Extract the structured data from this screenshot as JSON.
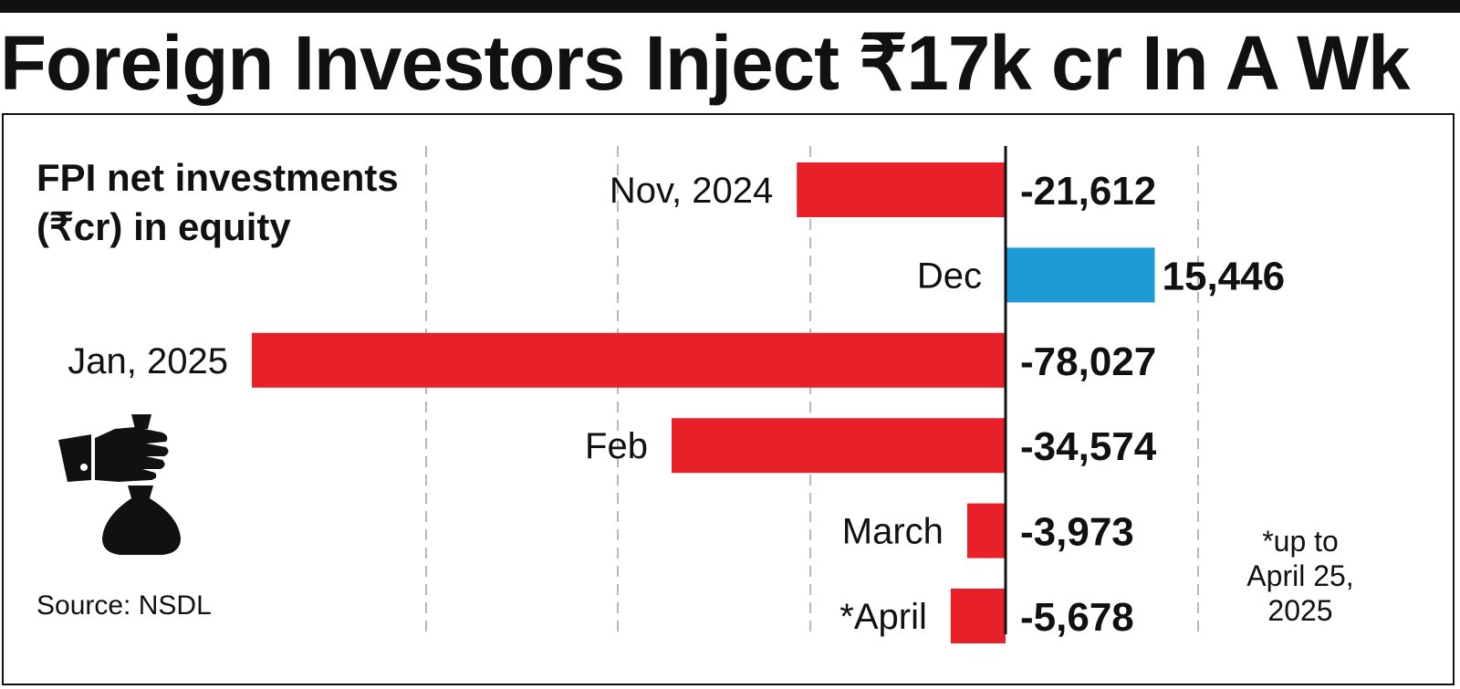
{
  "headline": "Foreign Investors Inject ₹17k cr In A Wk",
  "subtitle_line1": "FPI net investments",
  "subtitle_line2": "(₹cr) in equity",
  "source": "Source: NSDL",
  "footnote_line1": "*up to",
  "footnote_line2": "April 25,",
  "footnote_line3": "2025",
  "icon": "money-bag-hand-icon",
  "chart_data": {
    "type": "bar",
    "orientation": "horizontal",
    "categories": [
      "Nov, 2024",
      "Dec",
      "Jan, 2025",
      "Feb",
      "March",
      "*April"
    ],
    "values": [
      -21612,
      15446,
      -78027,
      -34574,
      -3973,
      -5678
    ],
    "value_labels": [
      "-21,612",
      "15,446",
      "-78,027",
      "-34,574",
      "-3,973",
      "-5,678"
    ],
    "title": "FPI net investments (₹cr) in equity",
    "xlim": [
      -78027,
      20000
    ],
    "colors": {
      "negative": "#e8202a",
      "positive": "#1e9ad6"
    },
    "grid": "dashed vertical"
  }
}
